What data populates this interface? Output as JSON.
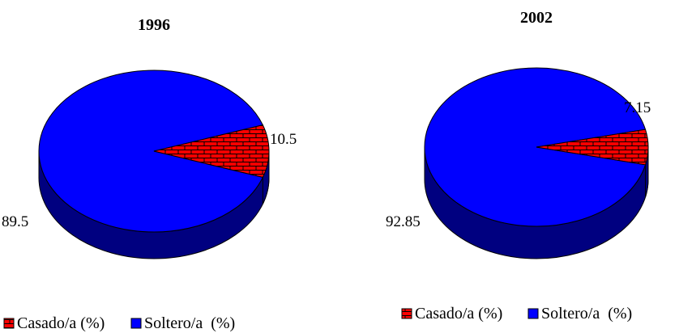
{
  "chart_data": [
    {
      "type": "pie",
      "title": "1996",
      "slices": [
        {
          "label": "Casado/a (%)",
          "value": 10.5,
          "display": "10.5",
          "color": "#ff0000",
          "pattern": "brick"
        },
        {
          "label": "Soltero/a  (%)",
          "value": 89.5,
          "display": "89.5",
          "color": "#0000ff"
        }
      ],
      "legend": {
        "position": "bottom-left",
        "entries": [
          "Casado/a (%)",
          "Soltero/a  (%)"
        ]
      }
    },
    {
      "type": "pie",
      "title": "2002",
      "slices": [
        {
          "label": "Casado/a (%)",
          "value": 7.15,
          "display": "7.15",
          "color": "#ff0000",
          "pattern": "brick"
        },
        {
          "label": "Soltero/a  (%)",
          "value": 92.85,
          "display": "92.85",
          "color": "#0000ff"
        }
      ],
      "legend": {
        "position": "bottom-right",
        "entries": [
          "Casado/a (%)",
          "Soltero/a  (%)"
        ]
      }
    }
  ],
  "colors": {
    "casado": "#ff0000",
    "soltero": "#0000ff",
    "soltero_side": "#000080",
    "casado_side": "#800000",
    "outline": "#000000"
  }
}
